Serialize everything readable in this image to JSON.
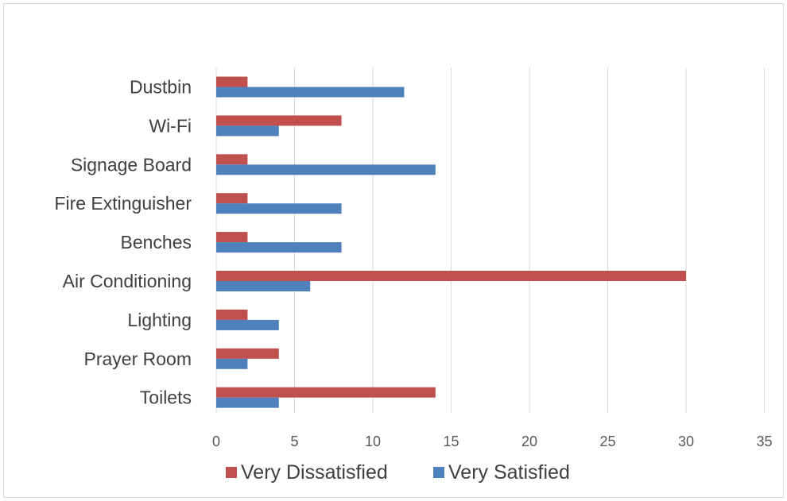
{
  "chart_data": {
    "type": "bar",
    "orientation": "horizontal",
    "categories": [
      "Dustbin",
      "Wi-Fi",
      "Signage Board",
      "Fire Extinguisher",
      "Benches",
      "Air Conditioning",
      "Lighting",
      "Prayer Room",
      "Toilets"
    ],
    "series": [
      {
        "name": "Very Dissatisfied",
        "color": "#c0504d",
        "values": [
          2,
          8,
          2,
          2,
          2,
          30,
          2,
          4,
          14
        ]
      },
      {
        "name": "Very Satisfied",
        "color": "#4f81bd",
        "values": [
          12,
          4,
          14,
          8,
          8,
          6,
          4,
          2,
          4
        ]
      }
    ],
    "xlim": [
      0,
      35
    ],
    "xticks": [
      "0",
      "5",
      "10",
      "15",
      "20",
      "25",
      "30",
      "35"
    ],
    "grid": true,
    "legend_position": "bottom"
  }
}
